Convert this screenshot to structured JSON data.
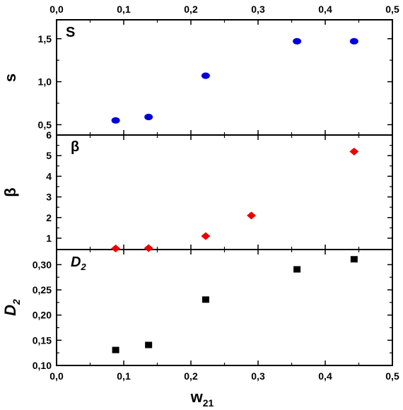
{
  "chart_data": {
    "type": "scatter",
    "x_axis": {
      "label": "w",
      "label_sub": "21",
      "range": [
        0.0,
        0.5
      ],
      "ticks": [
        "0,0",
        "0,1",
        "0,2",
        "0,3",
        "0,4",
        "0,5"
      ],
      "tick_values": [
        0.0,
        0.1,
        0.2,
        0.3,
        0.4,
        0.5
      ]
    },
    "panels": [
      {
        "id": "s",
        "panel_label": "S",
        "ylabel": "s",
        "ylabel_sub": "",
        "ylim": [
          0.38,
          1.72
        ],
        "yticks": [
          "0,5",
          "1,0",
          "1,5"
        ],
        "ytick_values": [
          0.5,
          1.0,
          1.5
        ],
        "marker": "circle",
        "color": "#0000dd",
        "points": [
          {
            "x": 0.088,
            "y": 0.55
          },
          {
            "x": 0.137,
            "y": 0.59
          },
          {
            "x": 0.222,
            "y": 1.07
          },
          {
            "x": 0.358,
            "y": 1.47
          },
          {
            "x": 0.443,
            "y": 1.47
          }
        ]
      },
      {
        "id": "beta",
        "panel_label": "β",
        "ylabel": "β",
        "ylabel_sub": "",
        "ylim": [
          0.45,
          6.0
        ],
        "yticks": [
          "1",
          "2",
          "3",
          "4",
          "5",
          "6"
        ],
        "ytick_values": [
          1,
          2,
          3,
          4,
          5,
          6
        ],
        "marker": "diamond",
        "color": "#ee0000",
        "points": [
          {
            "x": 0.088,
            "y": 0.5
          },
          {
            "x": 0.137,
            "y": 0.52
          },
          {
            "x": 0.222,
            "y": 1.1
          },
          {
            "x": 0.29,
            "y": 2.1
          },
          {
            "x": 0.443,
            "y": 5.2
          }
        ]
      },
      {
        "id": "D2",
        "panel_label": "D",
        "panel_label_sub": "2",
        "ylabel": "D",
        "ylabel_sub": "2",
        "ylim": [
          0.1,
          0.33
        ],
        "yticks": [
          "0,10",
          "0,15",
          "0,20",
          "0,25",
          "0,30"
        ],
        "ytick_values": [
          0.1,
          0.15,
          0.2,
          0.25,
          0.3
        ],
        "marker": "square",
        "color": "#000000",
        "points": [
          {
            "x": 0.088,
            "y": 0.13
          },
          {
            "x": 0.137,
            "y": 0.14
          },
          {
            "x": 0.222,
            "y": 0.23
          },
          {
            "x": 0.358,
            "y": 0.29
          },
          {
            "x": 0.443,
            "y": 0.31
          }
        ]
      }
    ]
  }
}
